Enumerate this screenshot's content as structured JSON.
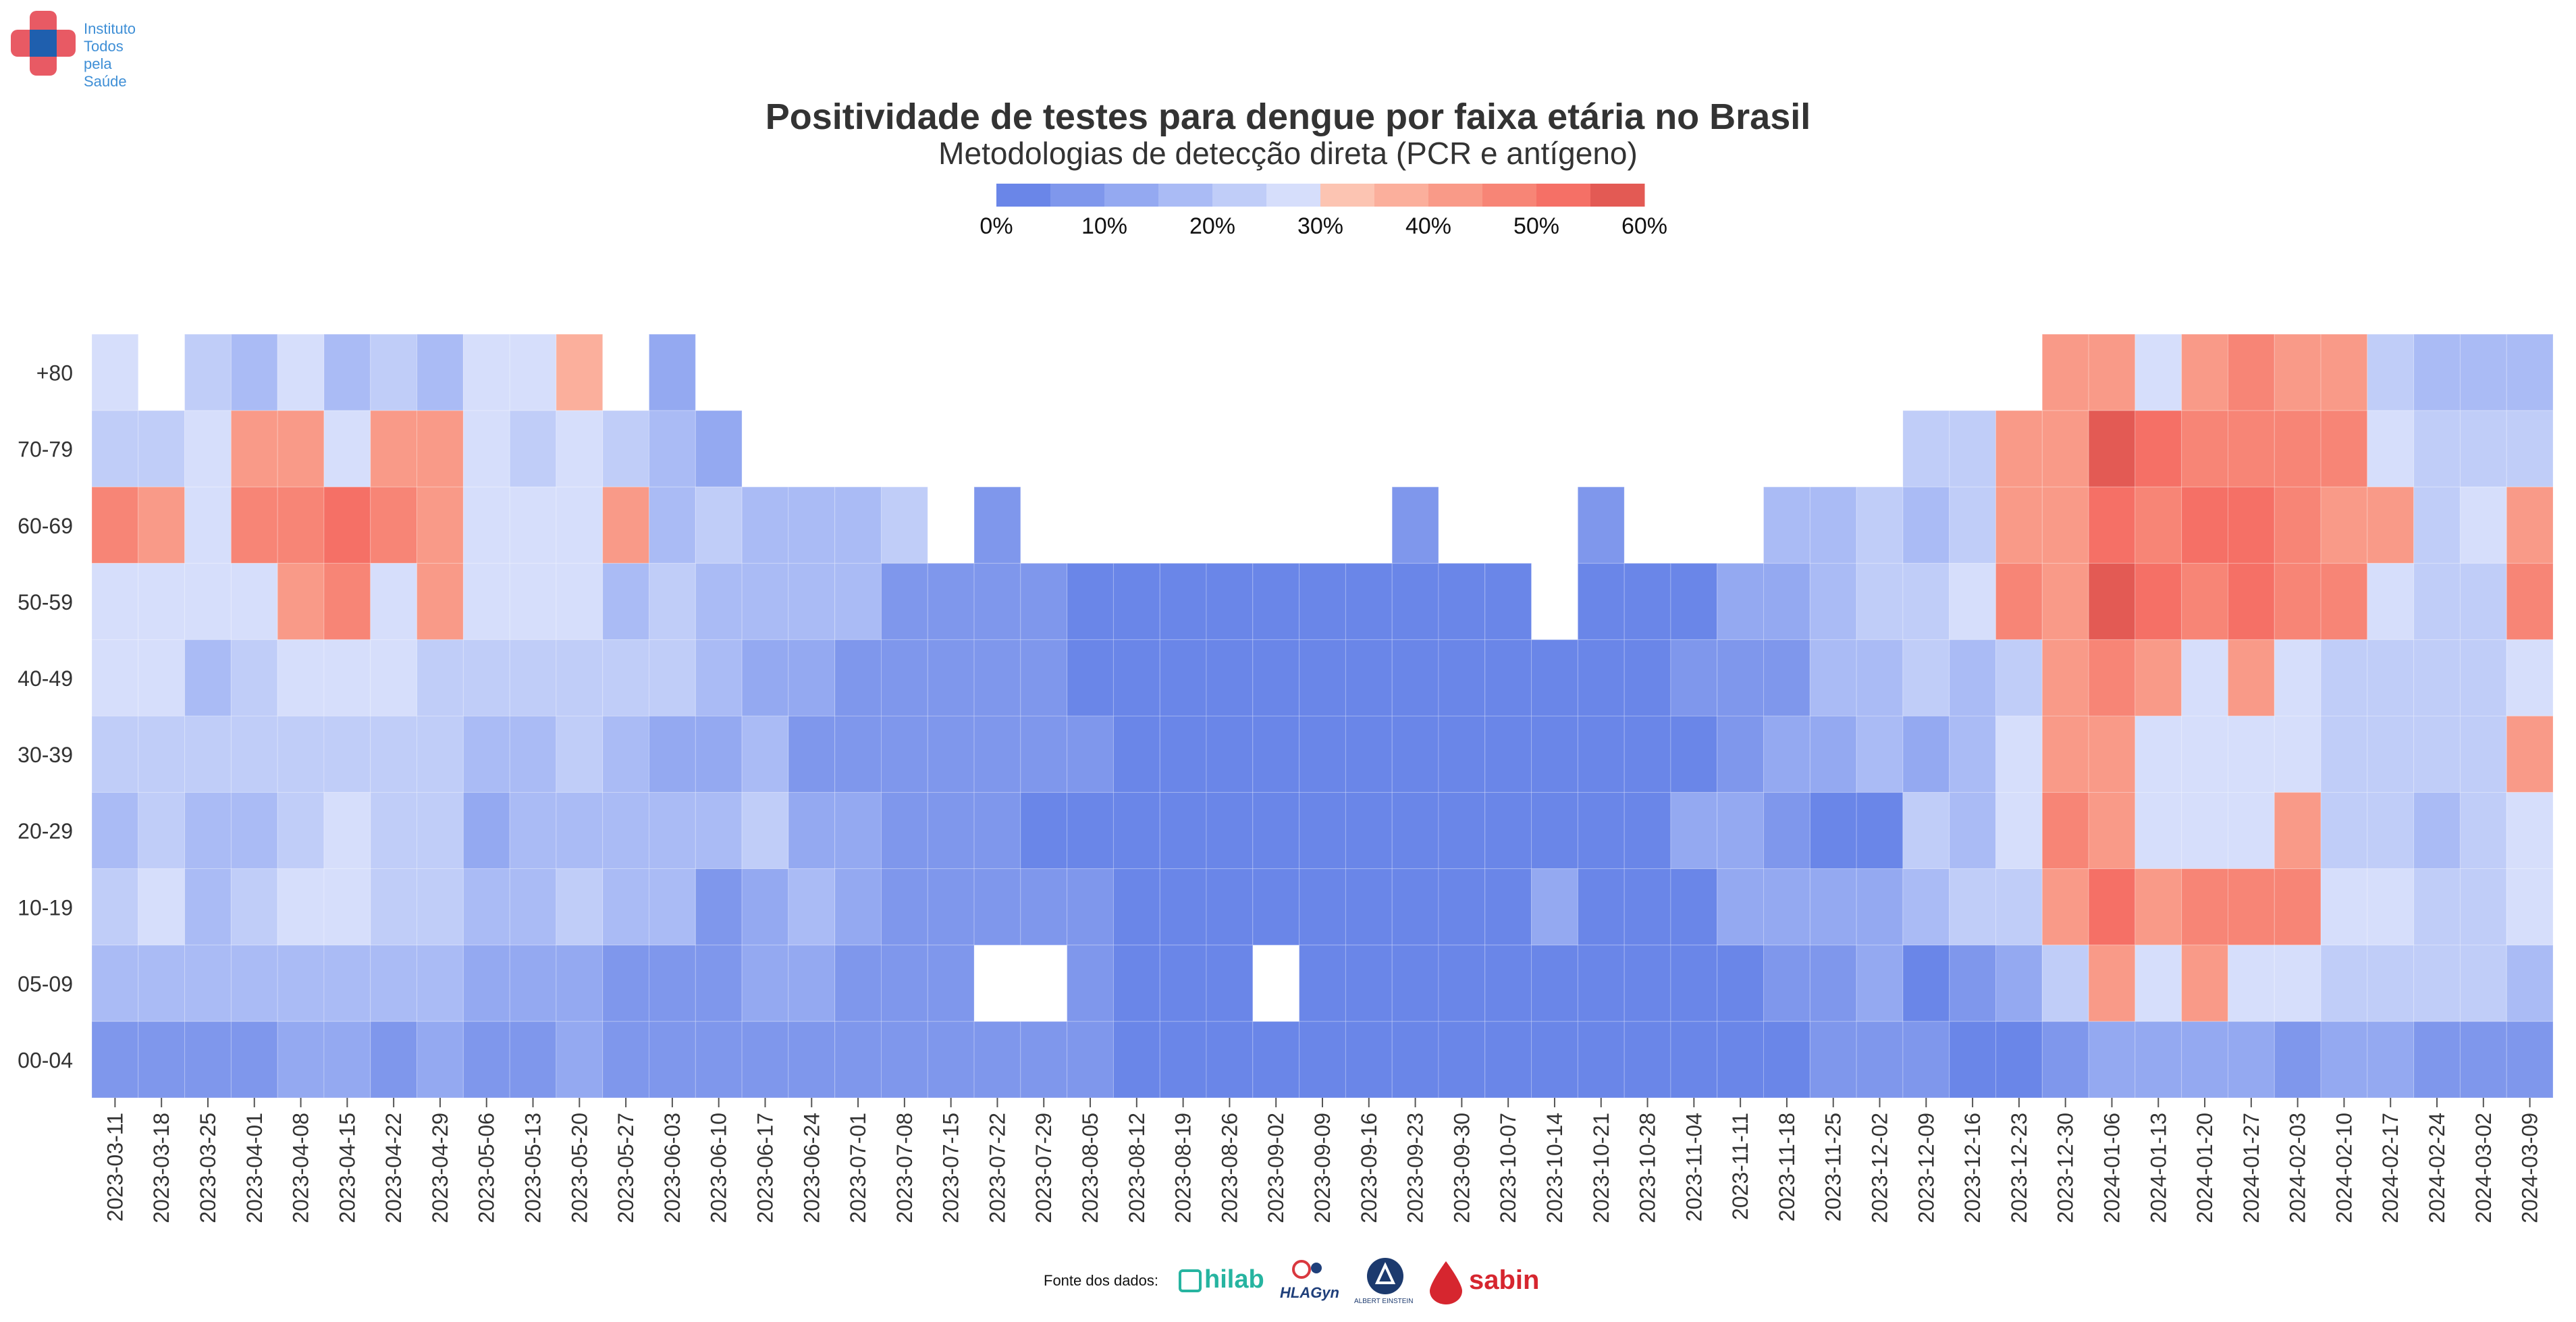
{
  "logo": {
    "lines": [
      "Instituto",
      "Todos",
      "pela",
      "Saúde"
    ],
    "colors": {
      "cross": "#e85a64",
      "center": "#1f5fae",
      "text": "#3f8fd6"
    }
  },
  "legend": {
    "colors": [
      "#6a86e8",
      "#7f97ec",
      "#94a9f1",
      "#aabbf5",
      "#c0cdf8",
      "#d6defb",
      "#fcc4b2",
      "#fbaf9c",
      "#f99a88",
      "#f78576",
      "#f57066",
      "#e35a54"
    ],
    "ticks": [
      "0%",
      "10%",
      "20%",
      "30%",
      "40%",
      "50%",
      "60%"
    ],
    "range": [
      0,
      60
    ]
  },
  "footer": {
    "label": "Fonte dos dados:",
    "brands": [
      "hilab",
      "HLAGyn",
      "ALBERT EINSTEIN",
      "sabin"
    ]
  },
  "chart_data": {
    "type": "heatmap",
    "title": "Positividade de testes para dengue por faixa etária no Brasil",
    "subtitle": "Metodologias de detecção direta (PCR e antígeno)",
    "value_range": [
      0,
      60
    ],
    "x": [
      "2023-03-11",
      "2023-03-18",
      "2023-03-25",
      "2023-04-01",
      "2023-04-08",
      "2023-04-15",
      "2023-04-22",
      "2023-04-29",
      "2023-05-06",
      "2023-05-13",
      "2023-05-20",
      "2023-05-27",
      "2023-06-03",
      "2023-06-10",
      "2023-06-17",
      "2023-06-24",
      "2023-07-01",
      "2023-07-08",
      "2023-07-15",
      "2023-07-22",
      "2023-07-29",
      "2023-08-05",
      "2023-08-12",
      "2023-08-19",
      "2023-08-26",
      "2023-09-02",
      "2023-09-09",
      "2023-09-16",
      "2023-09-23",
      "2023-09-30",
      "2023-10-07",
      "2023-10-14",
      "2023-10-21",
      "2023-10-28",
      "2023-11-04",
      "2023-11-11",
      "2023-11-18",
      "2023-11-25",
      "2023-12-02",
      "2023-12-09",
      "2023-12-16",
      "2023-12-23",
      "2023-12-30",
      "2024-01-06",
      "2024-01-13",
      "2024-01-20",
      "2024-01-27",
      "2024-02-03",
      "2024-02-10",
      "2024-02-17",
      "2024-02-24",
      "2024-03-02",
      "2024-03-09"
    ],
    "y": [
      "+80",
      "70-79",
      "60-69",
      "50-59",
      "40-49",
      "30-39",
      "20-29",
      "10-19",
      "05-09",
      "00-04"
    ],
    "values": [
      [
        29,
        null,
        24,
        19,
        28,
        18,
        24,
        19,
        28,
        28,
        38,
        null,
        12,
        null,
        null,
        null,
        null,
        null,
        null,
        null,
        null,
        null,
        null,
        null,
        null,
        null,
        null,
        null,
        null,
        null,
        null,
        null,
        null,
        null,
        null,
        null,
        null,
        null,
        null,
        null,
        null,
        null,
        40,
        44,
        28,
        40,
        45,
        41,
        40,
        23,
        18,
        18,
        15
      ],
      [
        23,
        24,
        28,
        40,
        40,
        28,
        40,
        40,
        28,
        23,
        28,
        24,
        18,
        12,
        null,
        null,
        null,
        null,
        null,
        null,
        null,
        null,
        null,
        null,
        null,
        null,
        null,
        null,
        null,
        null,
        null,
        null,
        null,
        null,
        null,
        null,
        null,
        null,
        null,
        22,
        24,
        40,
        44,
        56,
        50,
        45,
        48,
        45,
        45,
        28,
        23,
        23,
        23
      ],
      [
        46,
        40,
        28,
        45,
        46,
        52,
        45,
        40,
        28,
        28,
        28,
        40,
        18,
        24,
        18,
        18,
        15,
        20,
        null,
        9,
        null,
        null,
        null,
        null,
        null,
        null,
        null,
        null,
        5,
        null,
        null,
        null,
        5,
        null,
        null,
        null,
        18,
        18,
        24,
        18,
        24,
        40,
        44,
        50,
        48,
        50,
        52,
        48,
        40,
        40,
        23,
        28,
        40
      ],
      [
        28,
        28,
        28,
        28,
        40,
        45,
        28,
        40,
        28,
        28,
        28,
        18,
        24,
        18,
        18,
        18,
        18,
        9,
        5,
        9,
        8,
        4,
        4,
        4,
        4,
        4,
        4,
        4,
        4,
        4,
        4,
        null,
        4,
        4,
        4,
        12,
        14,
        18,
        24,
        24,
        28,
        48,
        40,
        60,
        52,
        45,
        52,
        48,
        45,
        28,
        24,
        23,
        48
      ],
      [
        28,
        28,
        18,
        24,
        28,
        28,
        28,
        24,
        24,
        24,
        24,
        23,
        20,
        18,
        12,
        12,
        8,
        8,
        9,
        9,
        5,
        4,
        4,
        4,
        4,
        4,
        4,
        4,
        4,
        4,
        4,
        4,
        4,
        4,
        9,
        9,
        9,
        19,
        19,
        24,
        18,
        24,
        40,
        45,
        41,
        28,
        40,
        28,
        24,
        24,
        20,
        23,
        28
      ],
      [
        24,
        23,
        23,
        24,
        24,
        24,
        23,
        23,
        19,
        19,
        24,
        18,
        12,
        14,
        18,
        9,
        8,
        5,
        8,
        5,
        5,
        5,
        4,
        4,
        4,
        4,
        4,
        4,
        4,
        4,
        4,
        4,
        4,
        4,
        4,
        9,
        14,
        14,
        15,
        14,
        19,
        28,
        40,
        40,
        28,
        28,
        28,
        28,
        24,
        24,
        20,
        24,
        40
      ],
      [
        18,
        23,
        19,
        18,
        24,
        28,
        23,
        23,
        12,
        19,
        19,
        18,
        18,
        18,
        20,
        12,
        12,
        8,
        5,
        9,
        4,
        4,
        4,
        4,
        4,
        4,
        4,
        4,
        4,
        4,
        4,
        4,
        4,
        4,
        12,
        12,
        9,
        4,
        4,
        20,
        18,
        28,
        45,
        40,
        28,
        28,
        28,
        40,
        24,
        23,
        18,
        20,
        28
      ],
      [
        24,
        28,
        19,
        24,
        28,
        28,
        23,
        23,
        19,
        19,
        24,
        18,
        18,
        8,
        14,
        19,
        12,
        9,
        9,
        9,
        9,
        8,
        4,
        4,
        4,
        4,
        4,
        4,
        4,
        4,
        4,
        12,
        4,
        4,
        4,
        12,
        12,
        12,
        12,
        19,
        24,
        24,
        40,
        50,
        40,
        45,
        46,
        48,
        28,
        28,
        23,
        24,
        28
      ],
      [
        19,
        19,
        19,
        19,
        18,
        18,
        19,
        19,
        12,
        12,
        12,
        9,
        9,
        9,
        12,
        12,
        5,
        5,
        9,
        null,
        null,
        9,
        4,
        4,
        4,
        null,
        4,
        4,
        4,
        4,
        4,
        4,
        4,
        4,
        4,
        4,
        9,
        9,
        12,
        4,
        9,
        14,
        24,
        40,
        28,
        40,
        28,
        28,
        24,
        24,
        23,
        23,
        19
      ],
      [
        9,
        9,
        9,
        9,
        12,
        12,
        9,
        12,
        9,
        9,
        14,
        9,
        9,
        9,
        9,
        9,
        5,
        5,
        5,
        5,
        5,
        5,
        4,
        4,
        4,
        4,
        4,
        4,
        4,
        4,
        4,
        4,
        4,
        4,
        4,
        4,
        4,
        5,
        5,
        9,
        4,
        4,
        9,
        14,
        12,
        12,
        12,
        9,
        12,
        12,
        9,
        9,
        9
      ]
    ]
  }
}
